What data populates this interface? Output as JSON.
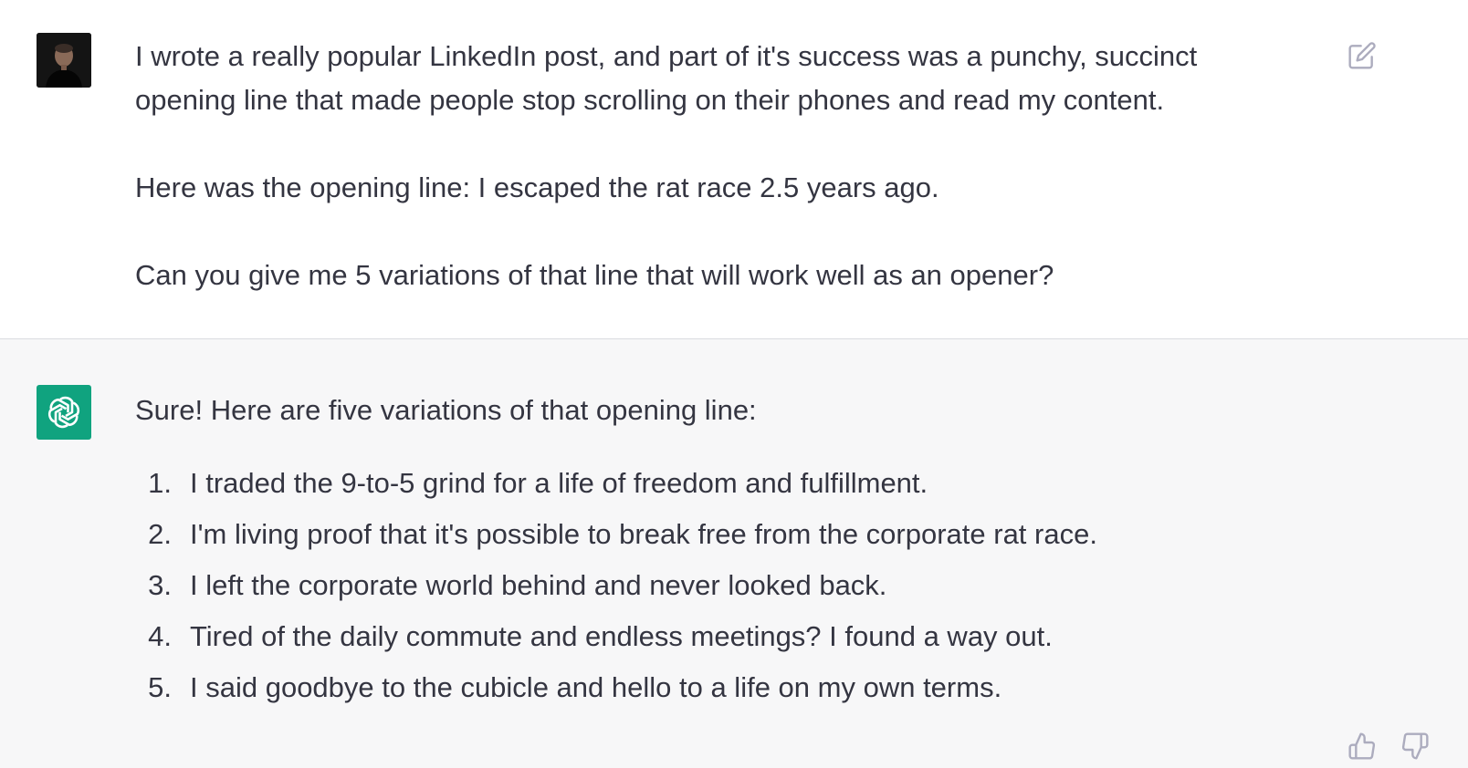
{
  "user_message": {
    "paragraphs": [
      "I wrote a really popular LinkedIn post, and part of it's success was a punchy, succinct\nopening line that made people stop scrolling on their phones and read my content.",
      "Here was the opening line: I escaped the rat race 2.5 years ago.",
      "Can you give me 5 variations of that line that will work well as an opener?"
    ],
    "edit_icon": "edit-icon"
  },
  "assistant_message": {
    "intro": "Sure! Here are five variations of that opening line:",
    "items": [
      {
        "num": "1.",
        "text": "I traded the 9-to-5 grind for a life of freedom and fulfillment."
      },
      {
        "num": "2.",
        "text": "I'm living proof that it's possible to break free from the corporate rat race."
      },
      {
        "num": "3.",
        "text": "I left the corporate world behind and never looked back."
      },
      {
        "num": "4.",
        "text": "Tired of the daily commute and endless meetings? I found a way out."
      },
      {
        "num": "5.",
        "text": "I said goodbye to the cubicle and hello to a life on my own terms."
      }
    ],
    "thumbs_up_icon": "thumbs-up-icon",
    "thumbs_down_icon": "thumbs-down-icon"
  },
  "colors": {
    "assistant_avatar_bg": "#10a37f",
    "assistant_bg": "#f7f7f8",
    "text": "#343541",
    "icon": "#acacbe"
  }
}
